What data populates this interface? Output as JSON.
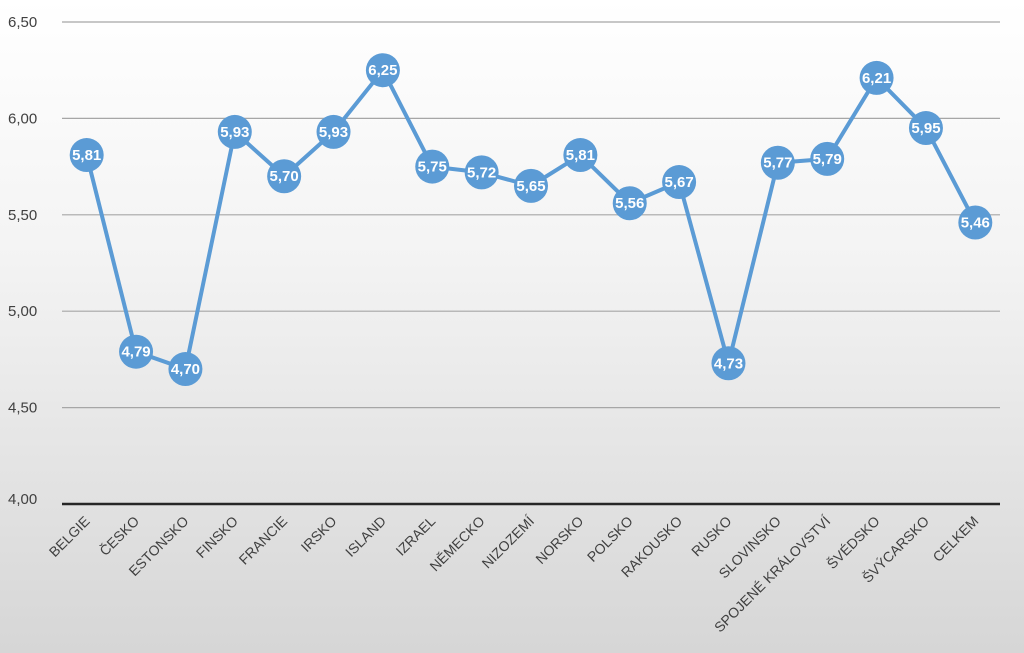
{
  "chart_data": {
    "type": "line",
    "categories": [
      "BELGIE",
      "ČESKO",
      "ESTONSKO",
      "FINSKO",
      "FRANCIE",
      "IRSKO",
      "ISLAND",
      "IZRAEL",
      "NĚMECKO",
      "NIZOZEMÍ",
      "NORSKO",
      "POLSKO",
      "RAKOUSKO",
      "RUSKO",
      "SLOVINSKO",
      "SPOJENÉ KRÁLOVSTVÍ",
      "ŠVÉDSKO",
      "ŠVÝCARSKO",
      "CELKEM"
    ],
    "values": [
      5.81,
      4.79,
      4.7,
      5.93,
      5.7,
      5.93,
      6.25,
      5.75,
      5.72,
      5.65,
      5.81,
      5.56,
      5.67,
      4.73,
      5.77,
      5.79,
      6.21,
      5.95,
      5.46
    ],
    "data_labels": [
      "5,81",
      "4,79",
      "4,70",
      "5,93",
      "5,70",
      "5,93",
      "6,25",
      "5,75",
      "5,72",
      "5,65",
      "5,81",
      "5,56",
      "5,67",
      "4,73",
      "5,77",
      "5,79",
      "6,21",
      "5,95",
      "5,46"
    ],
    "y_ticks": [
      4.0,
      4.5,
      5.0,
      5.5,
      6.0,
      6.5
    ],
    "y_tick_labels": [
      "4,00",
      "4,50",
      "5,00",
      "5,50",
      "6,00",
      "6,50"
    ],
    "ylim": [
      4.0,
      6.5
    ],
    "title": "",
    "xlabel": "",
    "ylabel": "",
    "grid": true,
    "legend": "none",
    "colors": {
      "line": "#5b9bd5",
      "marker": "#5b9bd5",
      "gridline": "#a6a6a6",
      "baseline": "#262626",
      "data_label": "#ffffff",
      "axis_text": "#404040"
    }
  }
}
